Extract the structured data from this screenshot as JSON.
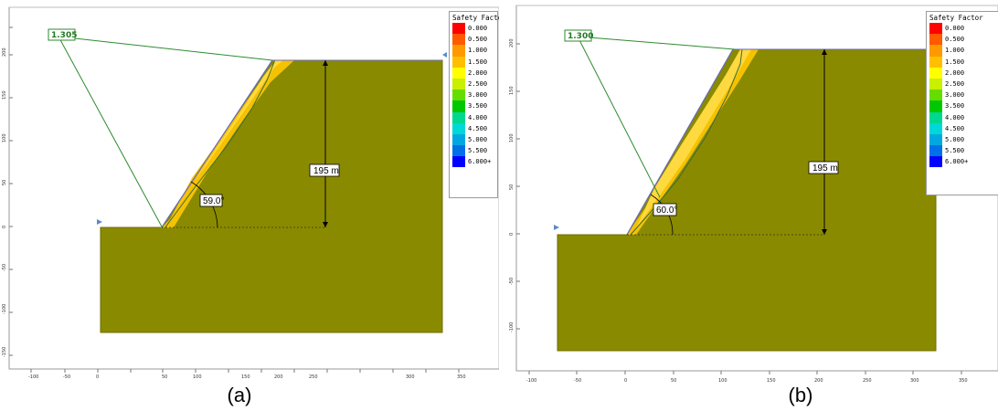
{
  "legend": {
    "title": "Safety Factor",
    "entries": [
      {
        "label": "0.000",
        "color": "#ff0000"
      },
      {
        "label": "0.500",
        "color": "#ff5a00"
      },
      {
        "label": "1.000",
        "color": "#ff9900"
      },
      {
        "label": "1.500",
        "color": "#ffc000"
      },
      {
        "label": "2.000",
        "color": "#ffff00"
      },
      {
        "label": "2.500",
        "color": "#c8f000"
      },
      {
        "label": "3.000",
        "color": "#66dd00"
      },
      {
        "label": "3.500",
        "color": "#00c800"
      },
      {
        "label": "4.000",
        "color": "#00d890"
      },
      {
        "label": "4.500",
        "color": "#00d8d8"
      },
      {
        "label": "5.000",
        "color": "#00a8e0"
      },
      {
        "label": "5.500",
        "color": "#0070e8"
      },
      {
        "label": "6.000+",
        "color": "#0000ff"
      }
    ]
  },
  "panels": [
    {
      "caption": "(a)",
      "safety_factor": "1.305",
      "height_label": "195 m",
      "angle_label": "59.0°",
      "x_ticks": [
        "-100",
        "-50",
        "0",
        "50",
        "100",
        "150",
        "200",
        "250",
        "300",
        "350"
      ],
      "y_ticks": [
        "200",
        "150",
        "100",
        "50",
        "0",
        "-50",
        "-100",
        "-150"
      ]
    },
    {
      "caption": "(b)",
      "safety_factor": "1.300",
      "height_label": "195 m",
      "angle_label": "60.0°",
      "x_ticks": [
        "-100",
        "-50",
        "0",
        "50",
        "100",
        "150",
        "200",
        "250",
        "300",
        "350"
      ],
      "y_ticks": [
        "200",
        "150",
        "100",
        "50",
        "0",
        "-50",
        "-100"
      ]
    }
  ],
  "colors": {
    "soil": "#8a8a00",
    "failure_zone": "#f5c200",
    "slip_line": "#2e8b2e",
    "boundary": "#6a6ab8"
  }
}
